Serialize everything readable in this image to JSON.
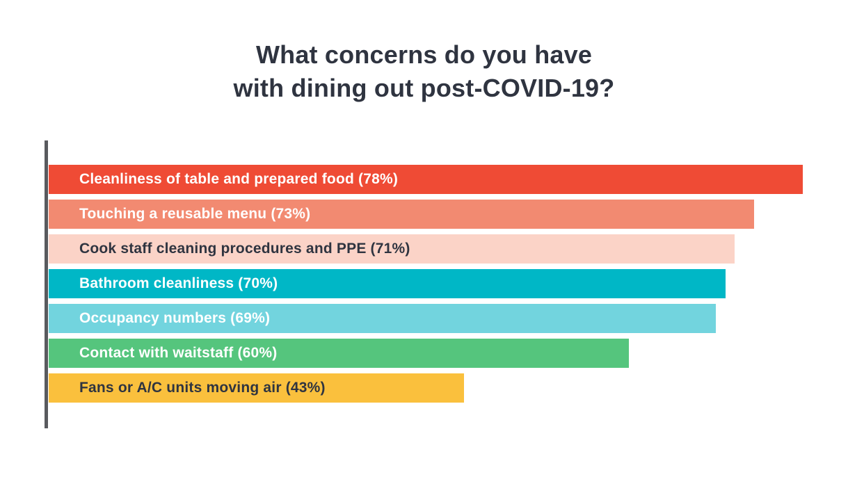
{
  "title": {
    "line1": "What concerns do you have",
    "line2": "with dining out post-COVID-19?"
  },
  "chart_data": {
    "type": "bar",
    "orientation": "horizontal",
    "title": "What concerns do you have with dining out post-COVID-19?",
    "categories": [
      "Cleanliness of table and prepared food",
      "Touching a reusable menu",
      "Cook staff cleaning procedures and PPE",
      "Bathroom cleanliness",
      "Occupancy numbers",
      "Contact with waitstaff",
      "Fans or A/C units moving air"
    ],
    "values": [
      78,
      73,
      71,
      70,
      69,
      60,
      43
    ],
    "unit": "%",
    "xlabel": "",
    "ylabel": "",
    "xlim": [
      0,
      82.7
    ],
    "grid": false,
    "legend": "none",
    "axis_line_color": "#595a5e",
    "background_color": "#ffffff",
    "title_color": "#2f3440",
    "bars": [
      {
        "id": "cleanliness-of-table-and-prepared-food",
        "label": "Cleanliness of table and prepared food (78%)",
        "value": 78,
        "color": "#ef4b35",
        "label_color": "#ffffff"
      },
      {
        "id": "touching-a-reusable-menu",
        "label": "Touching a reusable menu (73%)",
        "value": 73,
        "color": "#f28a71",
        "label_color": "#ffffff"
      },
      {
        "id": "cook-staff-cleaning-procedures-and-ppe",
        "label": "Cook staff cleaning procedures and PPE (71%)",
        "value": 71,
        "color": "#fbd3c7",
        "label_color": "#2f3440"
      },
      {
        "id": "bathroom-cleanliness",
        "label": "Bathroom cleanliness (70%)",
        "value": 70,
        "color": "#00b7c6",
        "label_color": "#ffffff"
      },
      {
        "id": "occupancy-numbers",
        "label": "Occupancy numbers (69%)",
        "value": 69,
        "color": "#72d4de",
        "label_color": "#ffffff"
      },
      {
        "id": "contact-with-waitstaff",
        "label": "Contact with waitstaff (60%)",
        "value": 60,
        "color": "#55c57d",
        "label_color": "#ffffff"
      },
      {
        "id": "fans-or-ac-units-moving-air",
        "label": "Fans or A/C units moving air (43%)",
        "value": 43,
        "color": "#fac03d",
        "label_color": "#2f3440"
      }
    ]
  }
}
